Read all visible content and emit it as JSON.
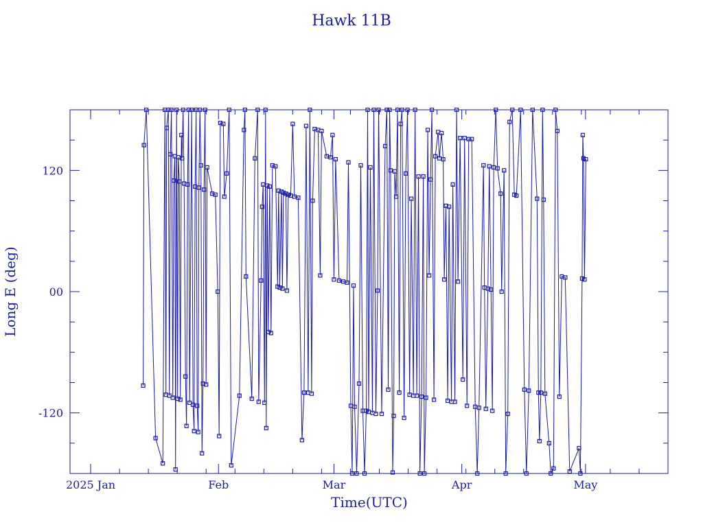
{
  "chart_data": {
    "type": "scatter",
    "title": "Hawk 11B",
    "xlabel": "Time(UTC)",
    "ylabel": "Long E (deg)",
    "xlim": [
      "2024-12-27",
      "2025-05-21"
    ],
    "ylim": [
      -180,
      180
    ],
    "x_ticks": [
      {
        "date": "2025-01-01",
        "label": "2025 Jan"
      },
      {
        "date": "2025-02-01",
        "label": "Feb"
      },
      {
        "date": "2025-03-01",
        "label": "Mar"
      },
      {
        "date": "2025-04-01",
        "label": "Apr"
      },
      {
        "date": "2025-05-01",
        "label": "May"
      }
    ],
    "y_ticks": [
      {
        "value": 120,
        "label": "120"
      },
      {
        "value": 0,
        "label": "00"
      },
      {
        "value": -120,
        "label": "-120"
      }
    ],
    "grid": false,
    "line_color": "#1a1aa6",
    "series": [
      {
        "points": [
          [
            "2025-01-13T18:00",
            -93
          ],
          [
            "2025-01-13T22:00",
            145
          ],
          [
            "2025-01-14T12:00",
            180
          ],
          [
            "2025-01-16T18:00",
            -145
          ],
          [
            "2025-01-18T12:00",
            -170
          ],
          [
            "2025-01-19T00:00",
            180
          ],
          [
            "2025-01-19T06:00",
            -102
          ],
          [
            "2025-01-19T10:00",
            162
          ],
          [
            "2025-01-19T20:00",
            180
          ],
          [
            "2025-01-20T02:00",
            -103
          ],
          [
            "2025-01-20T08:00",
            136
          ],
          [
            "2025-01-20T14:00",
            180
          ],
          [
            "2025-01-20T22:00",
            -105
          ],
          [
            "2025-01-21T04:00",
            110
          ],
          [
            "2025-01-21T10:00",
            134
          ],
          [
            "2025-01-21T14:00",
            -176
          ],
          [
            "2025-01-21T20:00",
            180
          ],
          [
            "2025-01-22T02:00",
            -106
          ],
          [
            "2025-01-22T06:00",
            133
          ],
          [
            "2025-01-22T12:00",
            109
          ],
          [
            "2025-01-22T18:00",
            -107
          ],
          [
            "2025-01-23T00:00",
            155
          ],
          [
            "2025-01-23T04:00",
            132
          ],
          [
            "2025-01-23T10:00",
            180
          ],
          [
            "2025-01-23T16:00",
            107
          ],
          [
            "2025-01-24T00:00",
            -84
          ],
          [
            "2025-01-24T06:00",
            -133
          ],
          [
            "2025-01-24T12:00",
            106
          ],
          [
            "2025-01-24T18:00",
            180
          ],
          [
            "2025-01-25T00:00",
            -110
          ],
          [
            "2025-01-25T12:00",
            180
          ],
          [
            "2025-01-25T20:00",
            -112
          ],
          [
            "2025-01-26T02:00",
            -138
          ],
          [
            "2025-01-26T08:00",
            104
          ],
          [
            "2025-01-26T14:00",
            180
          ],
          [
            "2025-01-26T20:00",
            -113
          ],
          [
            "2025-01-27T02:00",
            -139
          ],
          [
            "2025-01-27T06:00",
            103
          ],
          [
            "2025-01-27T12:00",
            180
          ],
          [
            "2025-01-27T18:00",
            125
          ],
          [
            "2025-01-28T00:00",
            -160
          ],
          [
            "2025-01-28T06:00",
            -91
          ],
          [
            "2025-01-28T12:00",
            101
          ],
          [
            "2025-01-28T18:00",
            180
          ],
          [
            "2025-01-29T00:00",
            -92
          ],
          [
            "2025-01-29T06:00",
            123
          ],
          [
            "2025-01-30T12:00",
            97
          ],
          [
            "2025-01-31T06:00",
            96
          ],
          [
            "2025-01-31T20:00",
            0
          ],
          [
            "2025-02-01T04:00",
            -143
          ],
          [
            "2025-02-01T10:00",
            167
          ],
          [
            "2025-02-02T04:00",
            166
          ],
          [
            "2025-02-02T10:00",
            94
          ],
          [
            "2025-02-03T00:00",
            117
          ],
          [
            "2025-02-03T14:00",
            180
          ],
          [
            "2025-02-04T02:00",
            -172
          ],
          [
            "2025-02-06T02:00",
            -103
          ],
          [
            "2025-02-07T04:00",
            160
          ],
          [
            "2025-02-07T10:00",
            180
          ],
          [
            "2025-02-07T16:00",
            15
          ],
          [
            "2025-02-09T02:00",
            -106
          ],
          [
            "2025-02-09T20:00",
            132
          ],
          [
            "2025-02-10T12:00",
            180
          ],
          [
            "2025-02-10T18:00",
            -109
          ],
          [
            "2025-02-11T08:00",
            11
          ],
          [
            "2025-02-11T14:00",
            84
          ],
          [
            "2025-02-11T20:00",
            106
          ],
          [
            "2025-02-12T04:00",
            -110
          ],
          [
            "2025-02-12T10:00",
            180
          ],
          [
            "2025-02-12T14:00",
            -135
          ],
          [
            "2025-02-12T20:00",
            105
          ],
          [
            "2025-02-13T02:00",
            -40
          ],
          [
            "2025-02-13T10:00",
            104
          ],
          [
            "2025-02-13T18:00",
            -41
          ],
          [
            "2025-02-14T02:00",
            125
          ],
          [
            "2025-02-14T20:00",
            124
          ],
          [
            "2025-02-15T08:00",
            5
          ],
          [
            "2025-02-15T14:00",
            100
          ],
          [
            "2025-02-15T20:00",
            4
          ],
          [
            "2025-02-16T06:00",
            99
          ],
          [
            "2025-02-16T12:00",
            3
          ],
          [
            "2025-02-16T18:00",
            98
          ],
          [
            "2025-02-17T08:00",
            97
          ],
          [
            "2025-02-17T14:00",
            1
          ],
          [
            "2025-02-17T22:00",
            96
          ],
          [
            "2025-02-18T12:00",
            95
          ],
          [
            "2025-02-19T00:00",
            166
          ],
          [
            "2025-02-19T10:00",
            94
          ],
          [
            "2025-02-20T08:00",
            93
          ],
          [
            "2025-02-21T06:00",
            -147
          ],
          [
            "2025-02-21T18:00",
            -100
          ],
          [
            "2025-02-22T06:00",
            164
          ],
          [
            "2025-02-22T18:00",
            -100
          ],
          [
            "2025-02-23T04:00",
            180
          ],
          [
            "2025-02-23T14:00",
            -101
          ],
          [
            "2025-02-23T20:00",
            90
          ],
          [
            "2025-02-24T08:00",
            161
          ],
          [
            "2025-02-25T04:00",
            160
          ],
          [
            "2025-02-25T16:00",
            16
          ],
          [
            "2025-02-26T00:00",
            159
          ],
          [
            "2025-02-27T06:00",
            134
          ],
          [
            "2025-02-28T04:00",
            133
          ],
          [
            "2025-02-28T16:00",
            155
          ],
          [
            "2025-03-01T00:00",
            12
          ],
          [
            "2025-03-01T10:00",
            131
          ],
          [
            "2025-03-02T06:00",
            11
          ],
          [
            "2025-03-03T06:00",
            10
          ],
          [
            "2025-03-04T04:00",
            9
          ],
          [
            "2025-03-04T12:00",
            128
          ],
          [
            "2025-03-05T02:00",
            -113
          ],
          [
            "2025-03-05T10:00",
            -180
          ],
          [
            "2025-03-05T18:00",
            6
          ],
          [
            "2025-03-06T00:00",
            -114
          ],
          [
            "2025-03-06T12:00",
            -180
          ],
          [
            "2025-03-07T02:00",
            -91
          ],
          [
            "2025-03-07T12:00",
            125
          ],
          [
            "2025-03-08T00:00",
            -118
          ],
          [
            "2025-03-08T10:00",
            -180
          ],
          [
            "2025-03-08T20:00",
            -118
          ],
          [
            "2025-03-09T04:00",
            180
          ],
          [
            "2025-03-09T10:00",
            -119
          ],
          [
            "2025-03-09T20:00",
            123
          ],
          [
            "2025-03-10T08:00",
            -120
          ],
          [
            "2025-03-10T16:00",
            180
          ],
          [
            "2025-03-11T04:00",
            -121
          ],
          [
            "2025-03-11T14:00",
            1
          ],
          [
            "2025-03-11T20:00",
            180
          ],
          [
            "2025-03-12T14:00",
            -121
          ],
          [
            "2025-03-13T10:00",
            144
          ],
          [
            "2025-03-13T20:00",
            180
          ],
          [
            "2025-03-14T04:00",
            -97
          ],
          [
            "2025-03-14T12:00",
            180
          ],
          [
            "2025-03-14T18:00",
            120
          ],
          [
            "2025-03-15T06:00",
            -179
          ],
          [
            "2025-03-15T12:00",
            -123
          ],
          [
            "2025-03-15T18:00",
            119
          ],
          [
            "2025-03-16T02:00",
            94
          ],
          [
            "2025-03-16T10:00",
            180
          ],
          [
            "2025-03-16T20:00",
            -100
          ],
          [
            "2025-03-17T04:00",
            166
          ],
          [
            "2025-03-17T12:00",
            180
          ],
          [
            "2025-03-18T00:00",
            -125
          ],
          [
            "2025-03-18T10:00",
            117
          ],
          [
            "2025-03-18T20:00",
            180
          ],
          [
            "2025-03-19T08:00",
            -102
          ],
          [
            "2025-03-19T18:00",
            92
          ],
          [
            "2025-03-20T06:00",
            -103
          ],
          [
            "2025-03-20T16:00",
            180
          ],
          [
            "2025-03-21T02:00",
            -103
          ],
          [
            "2025-03-21T12:00",
            114
          ],
          [
            "2025-03-21T20:00",
            -180
          ],
          [
            "2025-03-22T06:00",
            -104
          ],
          [
            "2025-03-22T16:00",
            114
          ],
          [
            "2025-03-22T22:00",
            -180
          ],
          [
            "2025-03-23T08:00",
            -105
          ],
          [
            "2025-03-23T18:00",
            160
          ],
          [
            "2025-03-24T02:00",
            16
          ],
          [
            "2025-03-24T10:00",
            111
          ],
          [
            "2025-03-24T18:00",
            180
          ],
          [
            "2025-03-25T06:00",
            -107
          ],
          [
            "2025-03-25T14:00",
            134
          ],
          [
            "2025-03-26T06:00",
            158
          ],
          [
            "2025-03-26T14:00",
            132
          ],
          [
            "2025-03-27T02:00",
            157
          ],
          [
            "2025-03-27T12:00",
            131
          ],
          [
            "2025-03-27T18:00",
            12
          ],
          [
            "2025-03-28T04:00",
            85
          ],
          [
            "2025-03-28T14:00",
            -108
          ],
          [
            "2025-03-28T22:00",
            84
          ],
          [
            "2025-03-29T12:00",
            -109
          ],
          [
            "2025-03-29T20:00",
            106
          ],
          [
            "2025-03-30T08:00",
            -109
          ],
          [
            "2025-03-30T18:00",
            180
          ],
          [
            "2025-03-31T02:00",
            10
          ],
          [
            "2025-03-31T14:00",
            152
          ],
          [
            "2025-04-01T06:00",
            -87
          ],
          [
            "2025-04-01T16:00",
            152
          ],
          [
            "2025-04-02T06:00",
            -113
          ],
          [
            "2025-04-02T16:00",
            151
          ],
          [
            "2025-04-03T10:00",
            151
          ],
          [
            "2025-04-04T06:00",
            -114
          ],
          [
            "2025-04-04T18:00",
            -180
          ],
          [
            "2025-04-05T04:00",
            -115
          ],
          [
            "2025-04-06T06:00",
            125
          ],
          [
            "2025-04-06T12:00",
            4
          ],
          [
            "2025-04-06T20:00",
            -116
          ],
          [
            "2025-04-07T08:00",
            3
          ],
          [
            "2025-04-07T16:00",
            124
          ],
          [
            "2025-04-08T02:00",
            2
          ],
          [
            "2025-04-08T10:00",
            -118
          ],
          [
            "2025-04-08T18:00",
            123
          ],
          [
            "2025-04-09T06:00",
            180
          ],
          [
            "2025-04-09T16:00",
            122
          ],
          [
            "2025-04-10T10:00",
            97
          ],
          [
            "2025-04-10T16:00",
            0
          ],
          [
            "2025-04-11T06:00",
            120
          ],
          [
            "2025-04-11T16:00",
            -180
          ],
          [
            "2025-04-12T04:00",
            -121
          ],
          [
            "2025-04-12T14:00",
            168
          ],
          [
            "2025-04-13T06:00",
            180
          ],
          [
            "2025-04-13T18:00",
            96
          ],
          [
            "2025-04-14T06:00",
            95
          ],
          [
            "2025-04-15T06:00",
            180
          ],
          [
            "2025-04-16T04:00",
            -97
          ],
          [
            "2025-04-16T16:00",
            -180
          ],
          [
            "2025-04-17T06:00",
            -98
          ],
          [
            "2025-04-18T04:00",
            180
          ],
          [
            "2025-04-19T06:00",
            92
          ],
          [
            "2025-04-19T14:00",
            -100
          ],
          [
            "2025-04-19T20:00",
            -148
          ],
          [
            "2025-04-20T04:00",
            -100
          ],
          [
            "2025-04-20T14:00",
            180
          ],
          [
            "2025-04-20T20:00",
            91
          ],
          [
            "2025-04-21T04:00",
            -101
          ],
          [
            "2025-04-22T04:00",
            -150
          ],
          [
            "2025-04-22T14:00",
            -180
          ],
          [
            "2025-04-23T06:00",
            -175
          ],
          [
            "2025-04-23T18:00",
            180
          ],
          [
            "2025-04-24T04:00",
            159
          ],
          [
            "2025-04-24T16:00",
            -104
          ],
          [
            "2025-04-25T06:00",
            15
          ],
          [
            "2025-04-26T02:00",
            14
          ],
          [
            "2025-04-27T04:00",
            -178
          ],
          [
            "2025-04-29T10:00",
            -155
          ],
          [
            "2025-04-29T18:00",
            -180
          ],
          [
            "2025-04-30T04:00",
            13
          ],
          [
            "2025-04-30T08:00",
            155
          ],
          [
            "2025-04-30T12:00",
            132
          ],
          [
            "2025-04-30T18:00",
            12
          ],
          [
            "2025-05-01T02:00",
            131
          ]
        ]
      }
    ]
  }
}
